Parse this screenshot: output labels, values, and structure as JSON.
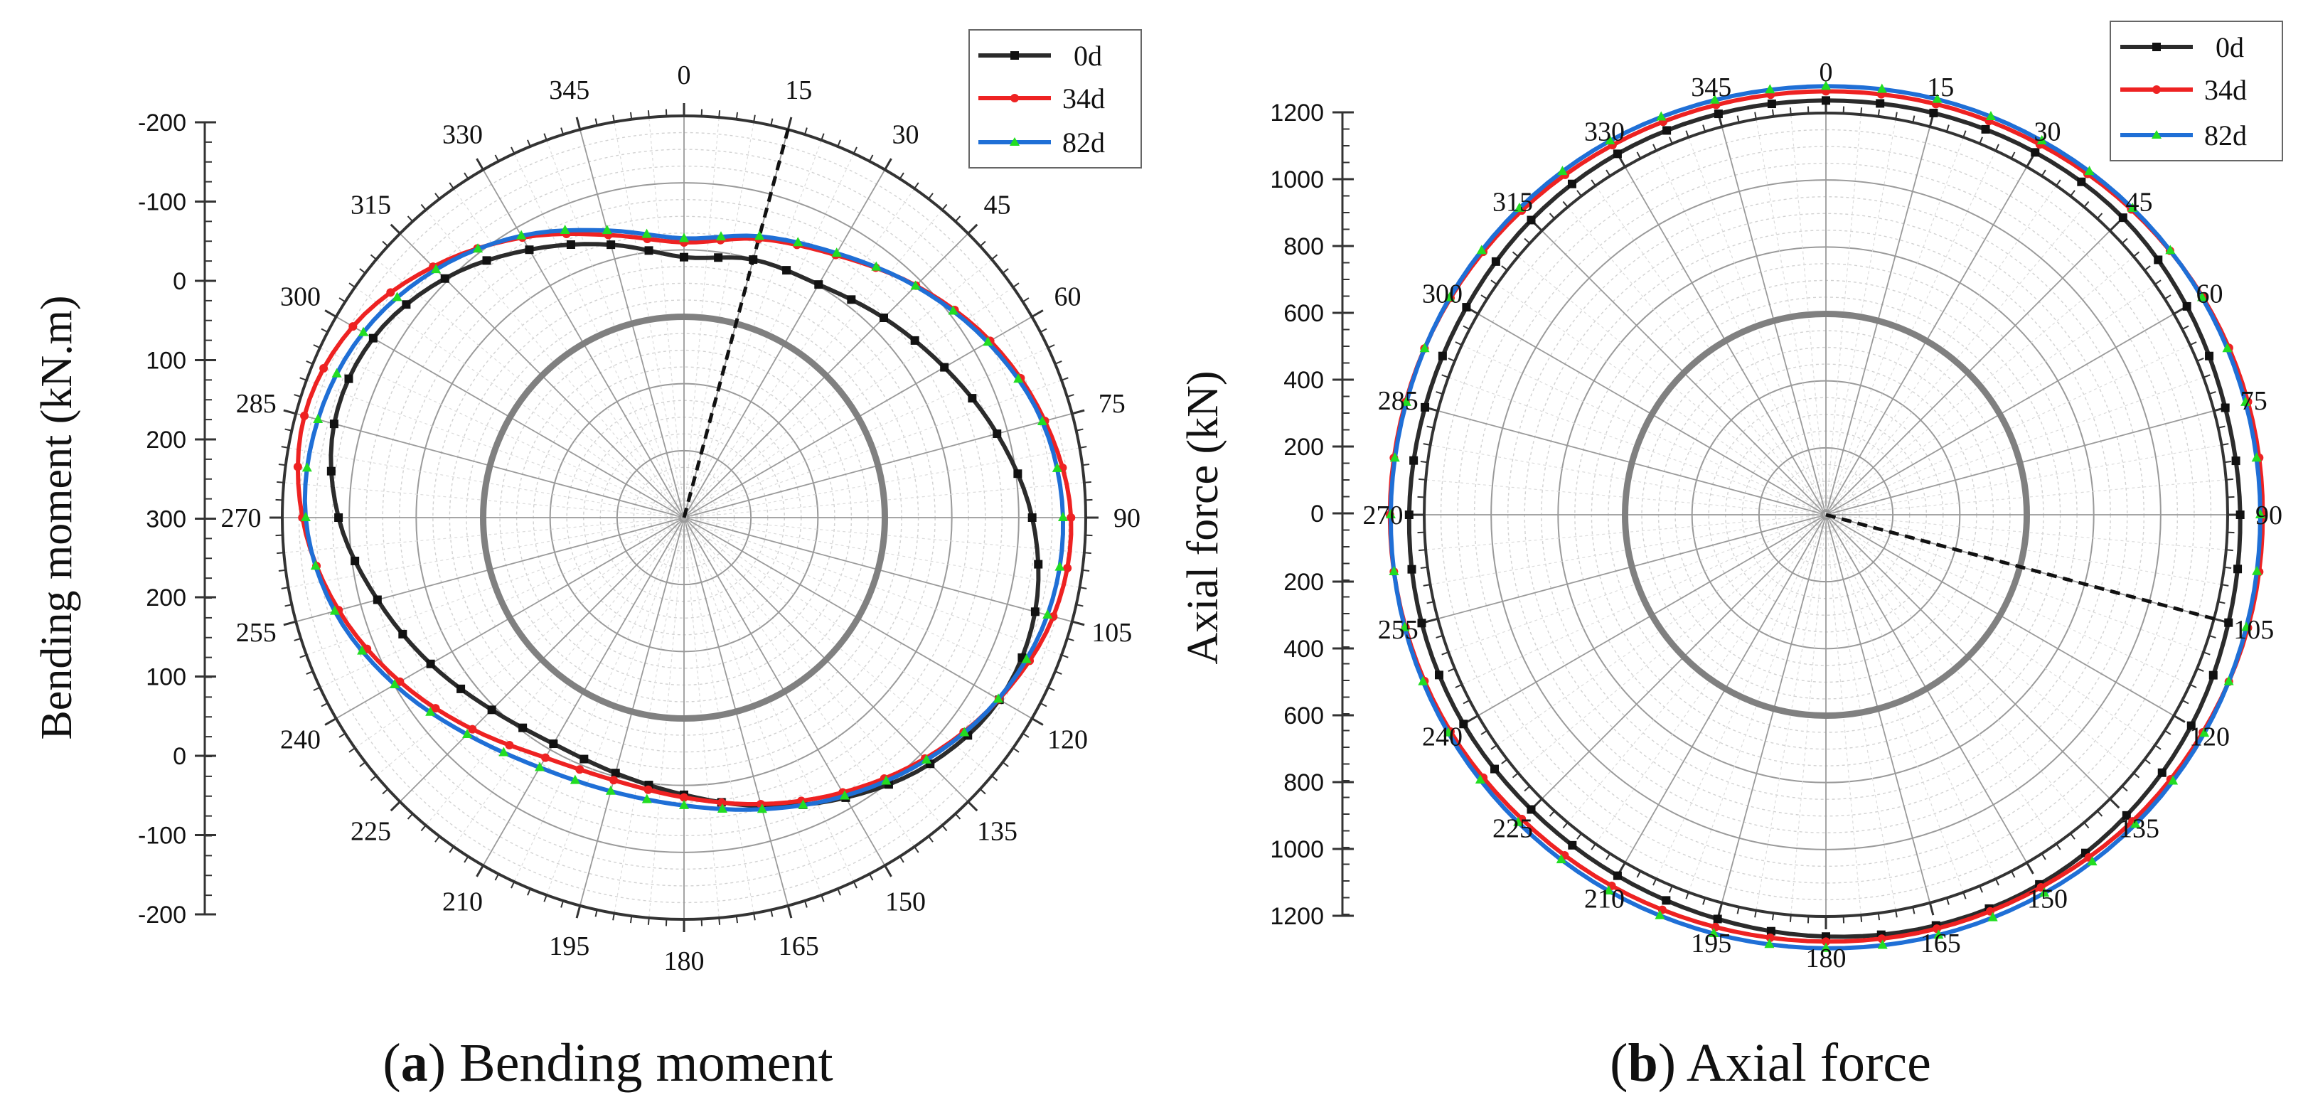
{
  "chart_data": [
    {
      "type": "polar-line",
      "panel": "a",
      "caption_letter": "a",
      "caption_text": " Bending moment",
      "ylabel": "Bending moment (kN.m)",
      "radial_ticks_top": [
        "-200",
        "-100",
        "0",
        "100",
        "200",
        "300"
      ],
      "radial_ticks_bottom": [
        "200",
        "100",
        "0",
        "-100",
        "-200"
      ],
      "radial_range": [
        -300,
        300
      ],
      "reference_circle": 0,
      "angle_labels": [
        "0",
        "15",
        "30",
        "45",
        "60",
        "75",
        "90",
        "105",
        "120",
        "135",
        "150",
        "165",
        "180",
        "195",
        "210",
        "225",
        "240",
        "255",
        "270",
        "285",
        "300",
        "315",
        "330",
        "345"
      ],
      "angle_unit": "deg",
      "marker_line_angle": 15,
      "legend": {
        "position": "top-right",
        "entries": [
          "0d",
          "34d",
          "82d"
        ]
      },
      "series": [
        {
          "name": "0d",
          "color": "#2b2b2b",
          "marker": "square",
          "radius": [
            89,
            99,
            102,
            122,
            149,
            184,
            220,
            243,
            244,
            220,
            183,
            146,
            114,
            95,
            90,
            106,
            137,
            174,
            216,
            241,
            236,
            205,
            162,
            122
          ]
        },
        {
          "name": "34d",
          "color": "#ee2222",
          "marker": "circle",
          "radius": [
            111,
            131,
            153,
            190,
            228,
            258,
            278,
            271,
            243,
            209,
            174,
            143,
            118,
            106,
            114,
            147,
            190,
            234,
            270,
            287,
            271,
            230,
            183,
            137
          ]
        },
        {
          "name": "82d",
          "color": "#1f6fd6",
          "marker": "triangle",
          "radius": [
            117,
            135,
            156,
            189,
            224,
            254,
            266,
            262,
            242,
            212,
            180,
            151,
            130,
            123,
            131,
            158,
            199,
            240,
            265,
            266,
            253,
            224,
            186,
            144
          ]
        }
      ]
    },
    {
      "type": "polar-line",
      "panel": "b",
      "caption_letter": "b",
      "caption_text": " Axial force",
      "ylabel": "Axial force (kN)",
      "radial_ticks_top": [
        "1200",
        "1000",
        "800",
        "600",
        "400",
        "200",
        "0"
      ],
      "radial_ticks_bottom": [
        "200",
        "400",
        "600",
        "800",
        "1000",
        "1200"
      ],
      "radial_range": [
        -1200,
        1200
      ],
      "reference_circle": 0,
      "angle_labels": [
        "0",
        "15",
        "30",
        "45",
        "60",
        "75",
        "90",
        "105",
        "120",
        "135",
        "150",
        "165",
        "180",
        "195",
        "210",
        "225",
        "240",
        "255",
        "270",
        "285",
        "300",
        "315",
        "330",
        "345"
      ],
      "angle_unit": "deg",
      "marker_line_angle": 105,
      "legend": {
        "position": "top-right",
        "entries": [
          "0d",
          "34d",
          "82d"
        ]
      },
      "series": [
        {
          "name": "0d",
          "color": "#2b2b2b",
          "marker": "square",
          "radius": [
            1275,
            1285,
            1300,
            1310,
            1290,
            1270,
            1275,
            1290,
            1320,
            1340,
            1350,
            1340,
            1320,
            1300,
            1290,
            1290,
            1300,
            1300,
            1290,
            1280,
            1280,
            1290,
            1290,
            1280
          ]
        },
        {
          "name": "34d",
          "color": "#ee2222",
          "marker": "circle",
          "radius": [
            1330,
            1340,
            1355,
            1380,
            1400,
            1410,
            1410,
            1410,
            1400,
            1390,
            1370,
            1360,
            1350,
            1350,
            1360,
            1370,
            1390,
            1400,
            1405,
            1400,
            1390,
            1370,
            1350,
            1335
          ]
        },
        {
          "name": "82d",
          "color": "#1f6fd6",
          "marker": "triangle",
          "radius": [
            1360,
            1370,
            1380,
            1390,
            1395,
            1395,
            1395,
            1400,
            1410,
            1415,
            1410,
            1400,
            1390,
            1390,
            1395,
            1400,
            1405,
            1405,
            1400,
            1395,
            1395,
            1390,
            1380,
            1365
          ]
        }
      ]
    }
  ]
}
